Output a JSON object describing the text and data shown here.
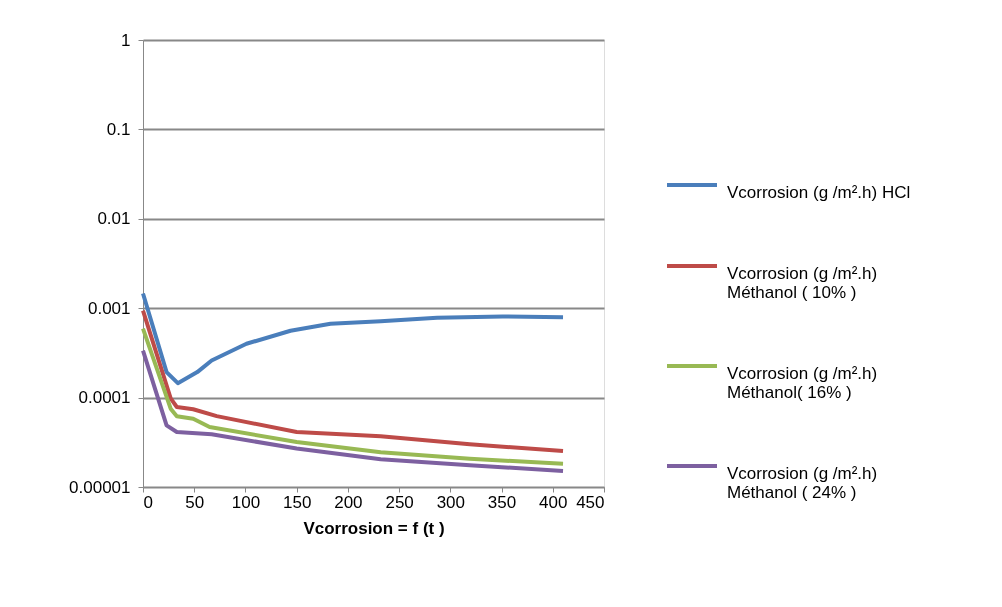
{
  "chart_data": {
    "type": "line",
    "xlabel": "Vcorrosion = f (t )",
    "xlim": [
      0,
      450
    ],
    "xticks": [
      0,
      50,
      100,
      150,
      200,
      250,
      300,
      350,
      400,
      450
    ],
    "ylim": [
      1e-05,
      1
    ],
    "yticks": [
      {
        "value": 1e-05,
        "label": "0.00001"
      },
      0.0001,
      0.001,
      0.01,
      0.1,
      1
    ],
    "log": "y",
    "grid": "y",
    "legend": "right",
    "line_style": "solid",
    "marker": "none",
    "series": [
      {
        "name": "Vcorrosion (g /m².h) HCl",
        "color": "#4a7ebb",
        "x": [
          0,
          23,
          34,
          53,
          67,
          101,
          144,
          183,
          232,
          287,
          351,
          410
        ],
        "values": [
          0.00146,
          0.000193,
          0.000145,
          0.000193,
          0.00026,
          0.0004,
          0.00056,
          0.00067,
          0.000716,
          0.00078,
          0.00081,
          0.00079
        ]
      },
      {
        "name": "Vcorrosion (g /m².h)\nMéthanol ( 10% )",
        "color": "#be4b48",
        "x": [
          0,
          27,
          33,
          49,
          72,
          150,
          232,
          319,
          410
        ],
        "values": [
          0.00094,
          9.8e-05,
          7.85e-05,
          7.4e-05,
          6.2e-05,
          4.12e-05,
          3.69e-05,
          3e-05,
          2.52e-05
        ]
      },
      {
        "name": "Vcorrosion (g /m².h)\nMéthanol( 16% )",
        "color": "#98b954",
        "x": [
          0,
          27,
          33,
          49,
          65,
          150,
          232,
          319,
          410
        ],
        "values": [
          0.00059,
          7.52e-05,
          6.17e-05,
          5.8e-05,
          4.68e-05,
          3.18e-05,
          2.45e-05,
          2.07e-05,
          1.82e-05
        ]
      },
      {
        "name": "Vcorrosion (g /m².h)\nMéthanol ( 24% )",
        "color": "#7d60a0",
        "x": [
          0,
          23,
          33,
          67,
          150,
          232,
          319,
          410
        ],
        "values": [
          0.000336,
          4.89e-05,
          4.12e-05,
          3.89e-05,
          2.69e-05,
          2.04e-05,
          1.75e-05,
          1.51e-05
        ]
      }
    ]
  }
}
